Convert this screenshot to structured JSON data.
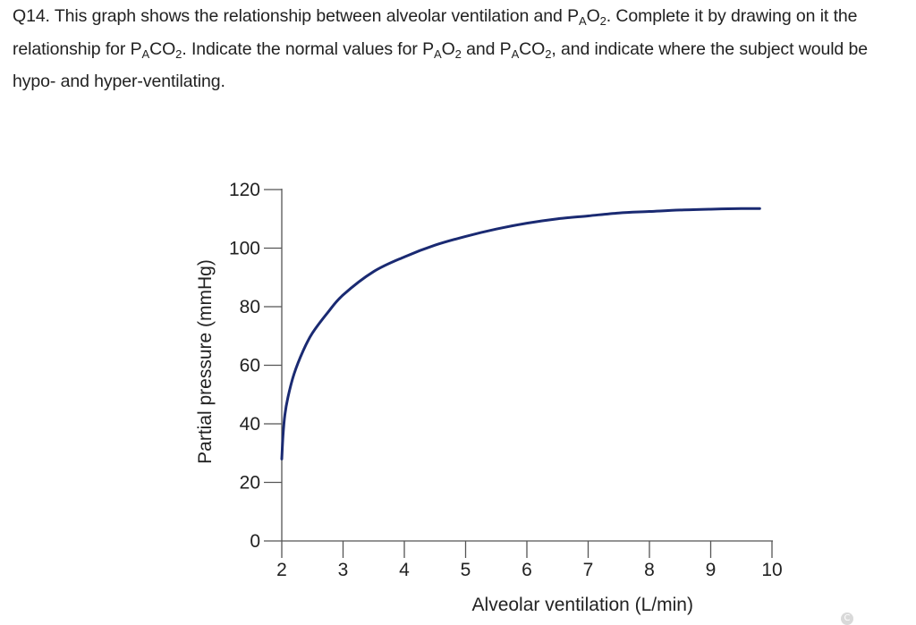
{
  "question": {
    "number": "Q14.",
    "text_1": " This graph shows the relationship between alveolar ventilation and P",
    "sub_1": "A",
    "text_2": "O",
    "sub_2": "2",
    "text_3": ". Complete it by drawing on it the relationship for P",
    "sub_3": "A",
    "text_4": "CO",
    "sub_4": "2",
    "text_5": ". Indicate the normal values for P",
    "sub_5": "A",
    "text_6": "O",
    "sub_6": "2",
    "text_7": " and P",
    "sub_7": "A",
    "text_8": "CO",
    "sub_8": "2",
    "text_9": ", and indicate where the subject would be hypo- and hyper-ventilating."
  },
  "chart_data": {
    "type": "line",
    "title": "",
    "xlabel": "Alveolar ventilation (L/min)",
    "ylabel": "Partial pressure (mmHg)",
    "xlim": [
      2,
      10
    ],
    "ylim": [
      0,
      120
    ],
    "xticks": [
      "2",
      "3",
      "4",
      "5",
      "6",
      "7",
      "8",
      "9",
      "10"
    ],
    "yticks": [
      "0",
      "20",
      "40",
      "60",
      "80",
      "100",
      "120"
    ],
    "grid": false,
    "series": [
      {
        "name": "PAO2",
        "color": "#1a2a72",
        "x": [
          2.0,
          2.02,
          2.05,
          2.1,
          2.2,
          2.35,
          2.5,
          2.75,
          3.0,
          3.5,
          4.0,
          4.5,
          5.0,
          5.5,
          6.0,
          6.5,
          7.0,
          7.5,
          8.0,
          8.5,
          9.0,
          9.5,
          9.8
        ],
        "y": [
          28,
          36,
          43,
          49,
          57,
          65,
          71,
          78,
          84,
          92,
          97,
          101,
          104,
          106.5,
          108.5,
          110,
          111,
          112,
          112.5,
          113,
          113.3,
          113.5,
          113.5
        ]
      }
    ]
  },
  "footer": {
    "copyright_symbol": "C"
  }
}
